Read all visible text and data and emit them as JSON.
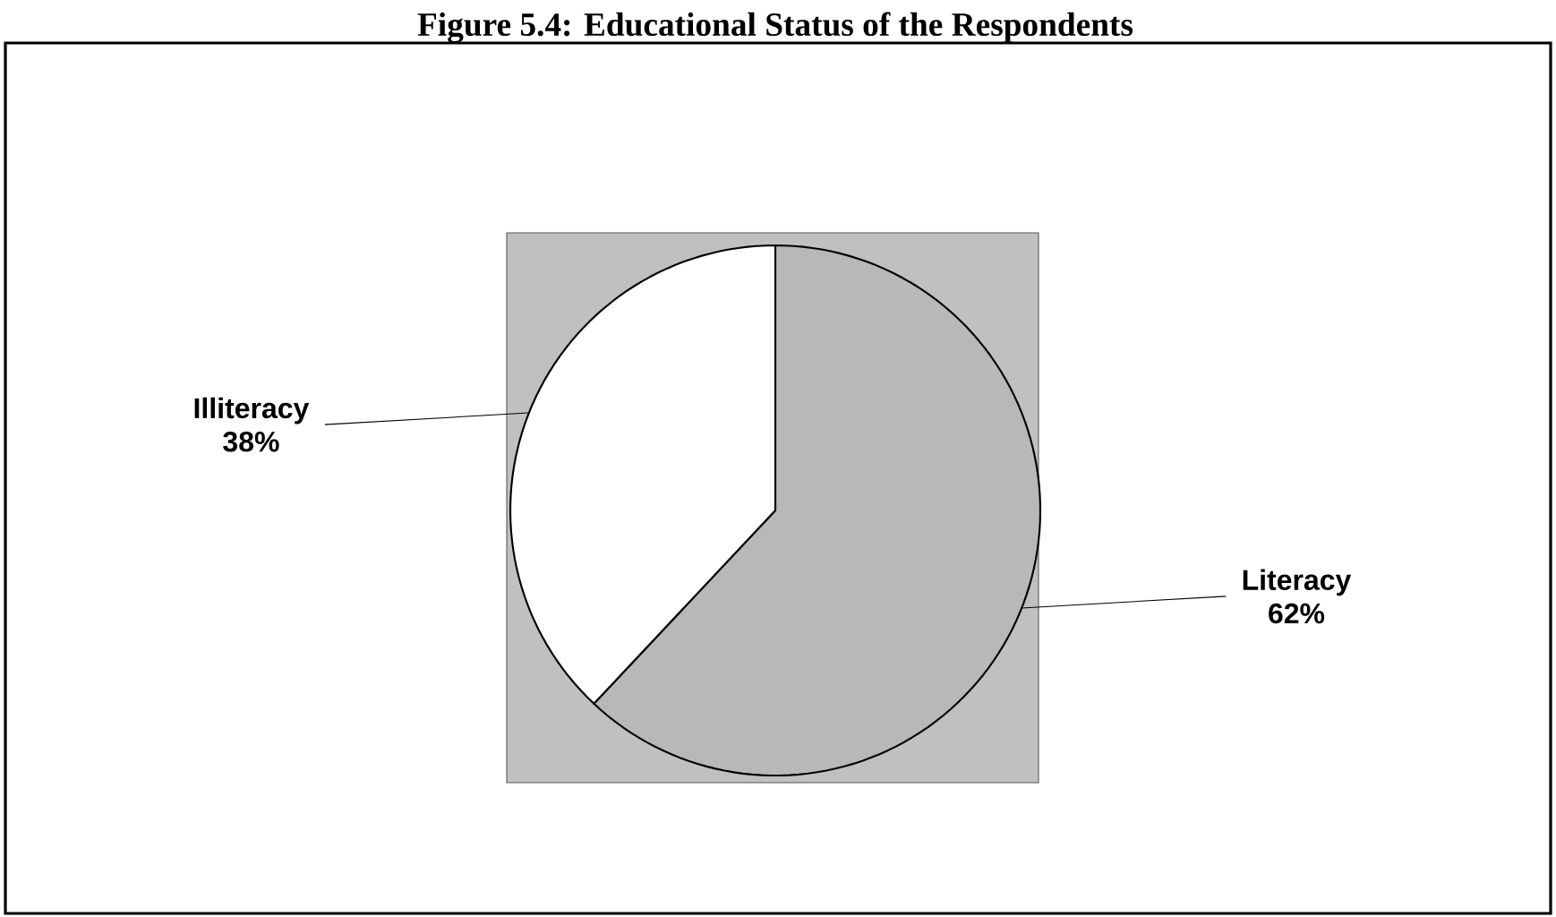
{
  "chart_data": {
    "type": "pie",
    "title": "Figure 5.4: Educational Status of the Respondents",
    "categories": [
      "Literacy",
      "Illiteracy"
    ],
    "values": [
      62,
      38
    ],
    "value_labels": [
      "62%",
      "38%"
    ],
    "colors": [
      "#b8b8b8",
      "#ffffff"
    ]
  }
}
